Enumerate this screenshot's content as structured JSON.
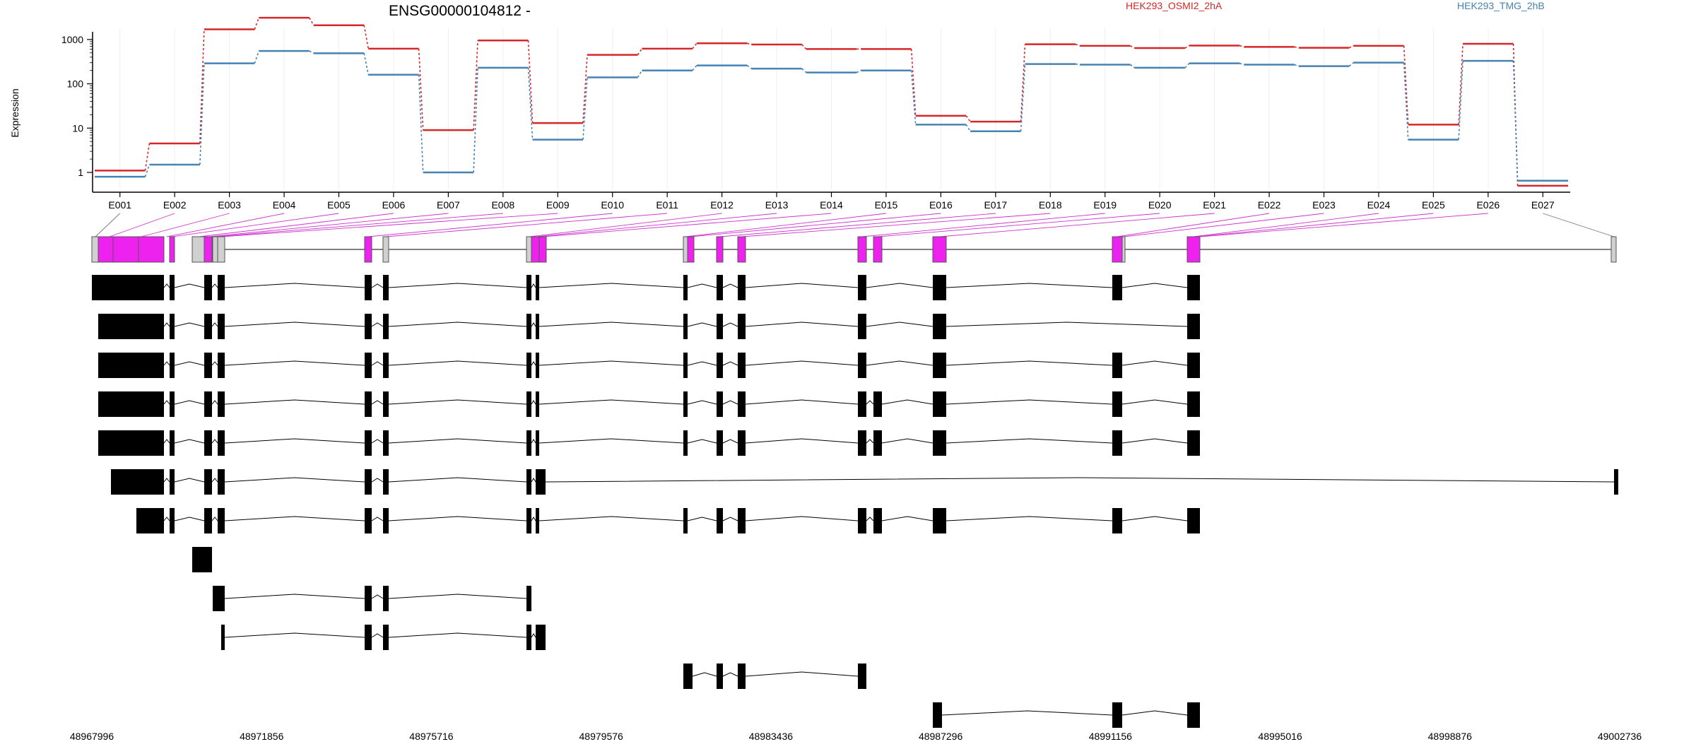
{
  "chart_data": {
    "type": "line",
    "title": "ENSG00000104812 -",
    "ylabel": "Expression",
    "y_scale": "log",
    "y_ticks": [
      1,
      10,
      100,
      1000
    ],
    "y_tick_labels": [
      "1",
      "10",
      "100",
      "1000"
    ],
    "grid": "vertical",
    "categories": [
      "E001",
      "E002",
      "E003",
      "E004",
      "E005",
      "E006",
      "E007",
      "E008",
      "E009",
      "E010",
      "E011",
      "E012",
      "E013",
      "E014",
      "E015",
      "E016",
      "E017",
      "E018",
      "E019",
      "E020",
      "E021",
      "E022",
      "E023",
      "E024",
      "E025",
      "E026",
      "E027"
    ],
    "series": [
      {
        "name": "HEK293_OSMI2_2hA",
        "color": "#d62728",
        "values": [
          1.1,
          4.5,
          1700,
          3100,
          2100,
          620,
          9,
          950,
          13,
          450,
          620,
          820,
          770,
          610,
          610,
          19,
          14,
          780,
          720,
          640,
          730,
          680,
          650,
          720,
          12,
          800,
          0.5
        ]
      },
      {
        "name": "HEK293_TMG_2hB",
        "color": "#4682b4",
        "values": [
          0.8,
          1.5,
          290,
          550,
          490,
          160,
          1,
          230,
          5.5,
          140,
          200,
          260,
          220,
          180,
          200,
          12,
          8.5,
          280,
          270,
          230,
          290,
          270,
          250,
          300,
          5.5,
          330,
          0.65
        ]
      }
    ],
    "genome_axis": {
      "ticks": [
        "48967996",
        "48971856",
        "48975716",
        "48979576",
        "48983436",
        "48987296",
        "48991156",
        "48995016",
        "48998876",
        "49002736"
      ]
    },
    "gene_model": {
      "exon_colors": {
        "tested": "#ee22ee",
        "untested": "#d0d0d0"
      },
      "transcript_color": "#000000",
      "transcript_count": 12
    }
  }
}
